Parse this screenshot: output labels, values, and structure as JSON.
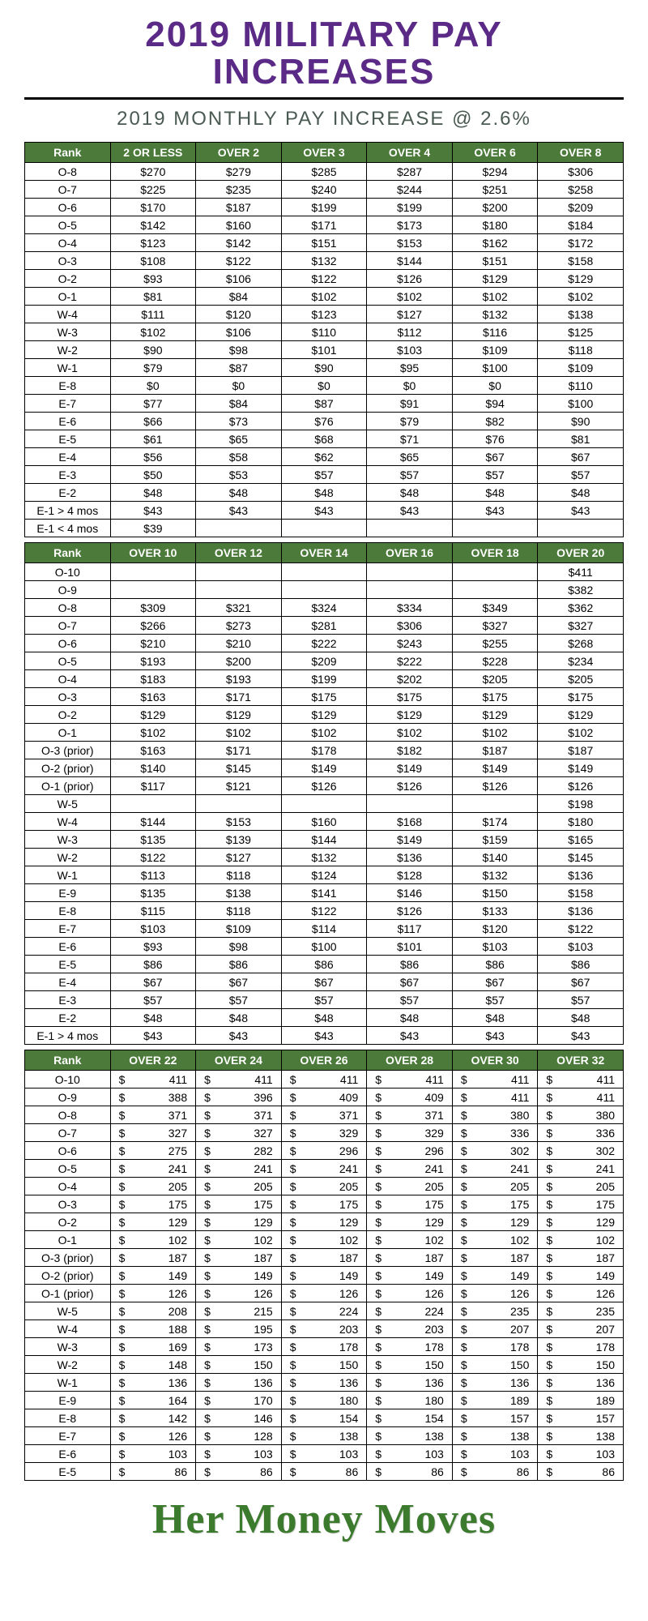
{
  "colors": {
    "title": "#5b2a86",
    "subtitle": "#4a5a52",
    "header_bg": "#4b7a3a",
    "footer": "#3c7a2e",
    "border": "#000000",
    "background": "#ffffff"
  },
  "typography": {
    "title_fontsize": 44,
    "subtitle_fontsize": 24,
    "footer_fontsize": 52
  },
  "title_line1": "2019 MILITARY PAY",
  "title_line2": "INCREASES",
  "subtitle": "2019 MONTHLY PAY INCREASE @ 2.6%",
  "footer": "Her Money Moves",
  "table1": {
    "format": "dollar",
    "columns": [
      "Rank",
      "2 OR LESS",
      "OVER 2",
      "OVER 3",
      "OVER 4",
      "OVER 6",
      "OVER 8"
    ],
    "rows": [
      [
        "O-8",
        "$270",
        "$279",
        "$285",
        "$287",
        "$294",
        "$306"
      ],
      [
        "O-7",
        "$225",
        "$235",
        "$240",
        "$244",
        "$251",
        "$258"
      ],
      [
        "O-6",
        "$170",
        "$187",
        "$199",
        "$199",
        "$200",
        "$209"
      ],
      [
        "O-5",
        "$142",
        "$160",
        "$171",
        "$173",
        "$180",
        "$184"
      ],
      [
        "O-4",
        "$123",
        "$142",
        "$151",
        "$153",
        "$162",
        "$172"
      ],
      [
        "O-3",
        "$108",
        "$122",
        "$132",
        "$144",
        "$151",
        "$158"
      ],
      [
        "O-2",
        "$93",
        "$106",
        "$122",
        "$126",
        "$129",
        "$129"
      ],
      [
        "O-1",
        "$81",
        "$84",
        "$102",
        "$102",
        "$102",
        "$102"
      ],
      [
        "W-4",
        "$111",
        "$120",
        "$123",
        "$127",
        "$132",
        "$138"
      ],
      [
        "W-3",
        "$102",
        "$106",
        "$110",
        "$112",
        "$116",
        "$125"
      ],
      [
        "W-2",
        "$90",
        "$98",
        "$101",
        "$103",
        "$109",
        "$118"
      ],
      [
        "W-1",
        "$79",
        "$87",
        "$90",
        "$95",
        "$100",
        "$109"
      ],
      [
        "E-8",
        "$0",
        "$0",
        "$0",
        "$0",
        "$0",
        "$110"
      ],
      [
        "E-7",
        "$77",
        "$84",
        "$87",
        "$91",
        "$94",
        "$100"
      ],
      [
        "E-6",
        "$66",
        "$73",
        "$76",
        "$79",
        "$82",
        "$90"
      ],
      [
        "E-5",
        "$61",
        "$65",
        "$68",
        "$71",
        "$76",
        "$81"
      ],
      [
        "E-4",
        "$56",
        "$58",
        "$62",
        "$65",
        "$67",
        "$67"
      ],
      [
        "E-3",
        "$50",
        "$53",
        "$57",
        "$57",
        "$57",
        "$57"
      ],
      [
        "E-2",
        "$48",
        "$48",
        "$48",
        "$48",
        "$48",
        "$48"
      ],
      [
        "E-1 > 4 mos",
        "$43",
        "$43",
        "$43",
        "$43",
        "$43",
        "$43"
      ],
      [
        "E-1 < 4 mos",
        "$39",
        "",
        "",
        "",
        "",
        ""
      ]
    ]
  },
  "table2": {
    "format": "dollar",
    "columns": [
      "Rank",
      "OVER 10",
      "OVER 12",
      "OVER 14",
      "OVER 16",
      "OVER 18",
      "OVER 20"
    ],
    "rows": [
      [
        "O-10",
        "",
        "",
        "",
        "",
        "",
        "$411"
      ],
      [
        "O-9",
        "",
        "",
        "",
        "",
        "",
        "$382"
      ],
      [
        "O-8",
        "$309",
        "$321",
        "$324",
        "$334",
        "$349",
        "$362"
      ],
      [
        "O-7",
        "$266",
        "$273",
        "$281",
        "$306",
        "$327",
        "$327"
      ],
      [
        "O-6",
        "$210",
        "$210",
        "$222",
        "$243",
        "$255",
        "$268"
      ],
      [
        "O-5",
        "$193",
        "$200",
        "$209",
        "$222",
        "$228",
        "$234"
      ],
      [
        "O-4",
        "$183",
        "$193",
        "$199",
        "$202",
        "$205",
        "$205"
      ],
      [
        "O-3",
        "$163",
        "$171",
        "$175",
        "$175",
        "$175",
        "$175"
      ],
      [
        "O-2",
        "$129",
        "$129",
        "$129",
        "$129",
        "$129",
        "$129"
      ],
      [
        "O-1",
        "$102",
        "$102",
        "$102",
        "$102",
        "$102",
        "$102"
      ],
      [
        "O-3 (prior)",
        "$163",
        "$171",
        "$178",
        "$182",
        "$187",
        "$187"
      ],
      [
        "O-2 (prior)",
        "$140",
        "$145",
        "$149",
        "$149",
        "$149",
        "$149"
      ],
      [
        "O-1 (prior)",
        "$117",
        "$121",
        "$126",
        "$126",
        "$126",
        "$126"
      ],
      [
        "W-5",
        "",
        "",
        "",
        "",
        "",
        "$198"
      ],
      [
        "W-4",
        "$144",
        "$153",
        "$160",
        "$168",
        "$174",
        "$180"
      ],
      [
        "W-3",
        "$135",
        "$139",
        "$144",
        "$149",
        "$159",
        "$165"
      ],
      [
        "W-2",
        "$122",
        "$127",
        "$132",
        "$136",
        "$140",
        "$145"
      ],
      [
        "W-1",
        "$113",
        "$118",
        "$124",
        "$128",
        "$132",
        "$136"
      ],
      [
        "E-9",
        "$135",
        "$138",
        "$141",
        "$146",
        "$150",
        "$158"
      ],
      [
        "E-8",
        "$115",
        "$118",
        "$122",
        "$126",
        "$133",
        "$136"
      ],
      [
        "E-7",
        "$103",
        "$109",
        "$114",
        "$117",
        "$120",
        "$122"
      ],
      [
        "E-6",
        "$93",
        "$98",
        "$100",
        "$101",
        "$103",
        "$103"
      ],
      [
        "E-5",
        "$86",
        "$86",
        "$86",
        "$86",
        "$86",
        "$86"
      ],
      [
        "E-4",
        "$67",
        "$67",
        "$67",
        "$67",
        "$67",
        "$67"
      ],
      [
        "E-3",
        "$57",
        "$57",
        "$57",
        "$57",
        "$57",
        "$57"
      ],
      [
        "E-2",
        "$48",
        "$48",
        "$48",
        "$48",
        "$48",
        "$48"
      ],
      [
        "E-1 > 4 mos",
        "$43",
        "$43",
        "$43",
        "$43",
        "$43",
        "$43"
      ]
    ]
  },
  "table3": {
    "format": "accounting",
    "columns": [
      "Rank",
      "OVER 22",
      "OVER 24",
      "OVER 26",
      "OVER 28",
      "OVER 30",
      "OVER 32"
    ],
    "rows": [
      [
        "O-10",
        "411",
        "411",
        "411",
        "411",
        "411",
        "411"
      ],
      [
        "O-9",
        "388",
        "396",
        "409",
        "409",
        "411",
        "411"
      ],
      [
        "O-8",
        "371",
        "371",
        "371",
        "371",
        "380",
        "380"
      ],
      [
        "O-7",
        "327",
        "327",
        "329",
        "329",
        "336",
        "336"
      ],
      [
        "O-6",
        "275",
        "282",
        "296",
        "296",
        "302",
        "302"
      ],
      [
        "O-5",
        "241",
        "241",
        "241",
        "241",
        "241",
        "241"
      ],
      [
        "O-4",
        "205",
        "205",
        "205",
        "205",
        "205",
        "205"
      ],
      [
        "O-3",
        "175",
        "175",
        "175",
        "175",
        "175",
        "175"
      ],
      [
        "O-2",
        "129",
        "129",
        "129",
        "129",
        "129",
        "129"
      ],
      [
        "O-1",
        "102",
        "102",
        "102",
        "102",
        "102",
        "102"
      ],
      [
        "O-3 (prior)",
        "187",
        "187",
        "187",
        "187",
        "187",
        "187"
      ],
      [
        "O-2 (prior)",
        "149",
        "149",
        "149",
        "149",
        "149",
        "149"
      ],
      [
        "O-1 (prior)",
        "126",
        "126",
        "126",
        "126",
        "126",
        "126"
      ],
      [
        "W-5",
        "208",
        "215",
        "224",
        "224",
        "235",
        "235"
      ],
      [
        "W-4",
        "188",
        "195",
        "203",
        "203",
        "207",
        "207"
      ],
      [
        "W-3",
        "169",
        "173",
        "178",
        "178",
        "178",
        "178"
      ],
      [
        "W-2",
        "148",
        "150",
        "150",
        "150",
        "150",
        "150"
      ],
      [
        "W-1",
        "136",
        "136",
        "136",
        "136",
        "136",
        "136"
      ],
      [
        "E-9",
        "164",
        "170",
        "180",
        "180",
        "189",
        "189"
      ],
      [
        "E-8",
        "142",
        "146",
        "154",
        "154",
        "157",
        "157"
      ],
      [
        "E-7",
        "126",
        "128",
        "138",
        "138",
        "138",
        "138"
      ],
      [
        "E-6",
        "103",
        "103",
        "103",
        "103",
        "103",
        "103"
      ],
      [
        "E-5",
        "86",
        "86",
        "86",
        "86",
        "86",
        "86"
      ]
    ]
  }
}
